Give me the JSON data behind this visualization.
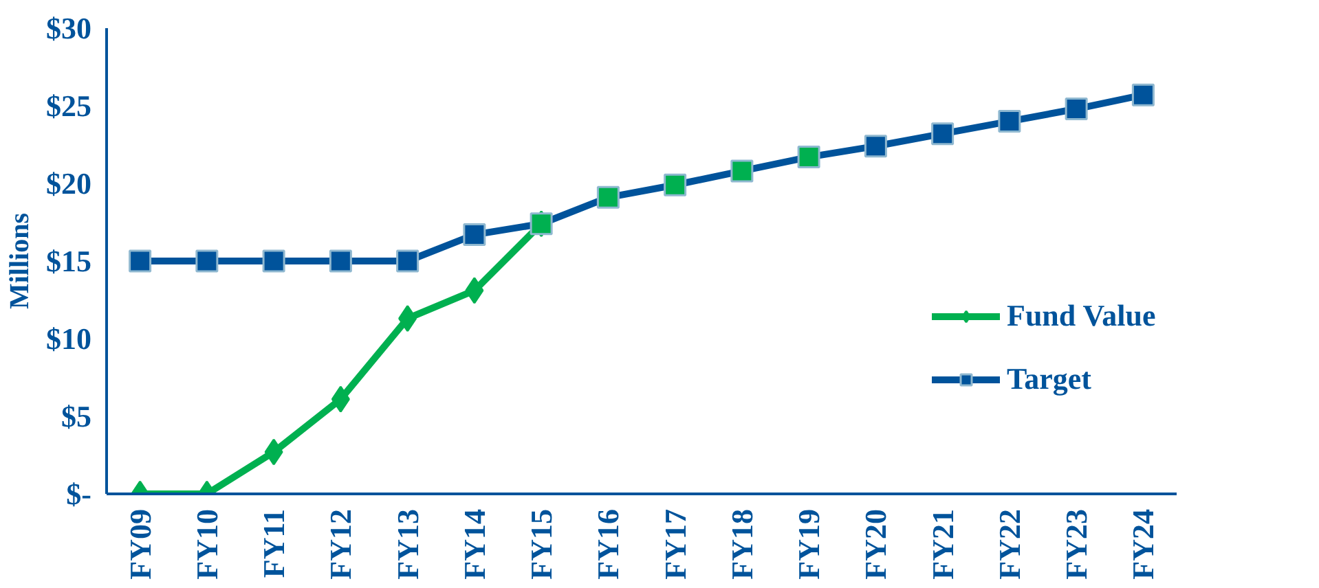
{
  "chart_data": {
    "type": "line",
    "ylabel": "Millions",
    "categories": [
      "FY09",
      "FY10",
      "FY11",
      "FY12",
      "FY13",
      "FY14",
      "FY15",
      "FY16",
      "FY17",
      "FY18",
      "FY19",
      "FY20",
      "FY21",
      "FY22",
      "FY23",
      "FY24"
    ],
    "series": [
      {
        "name": "Fund Value",
        "color": "#00b050",
        "marker": "diamond",
        "values": [
          0,
          0,
          2.7,
          6.1,
          11.3,
          13.1,
          17.4,
          null,
          null,
          null,
          null,
          null,
          null,
          null,
          null,
          null
        ]
      },
      {
        "name": "Target",
        "color": "#00539b",
        "marker": "square",
        "colors": [
          "#00539b",
          "#00539b",
          "#00539b",
          "#00539b",
          "#00539b",
          "#00539b",
          "#00b050",
          "#00b050",
          "#00b050",
          "#00b050",
          "#00b050",
          "#00539b",
          "#00539b",
          "#00539b",
          "#00539b",
          "#00539b"
        ],
        "values": [
          15,
          15,
          15,
          15,
          15,
          16.7,
          17.4,
          19.1,
          19.9,
          20.8,
          21.7,
          22.4,
          23.2,
          24.0,
          24.8,
          25.7
        ]
      }
    ],
    "ylim": [
      0,
      30
    ],
    "yticks": [
      {
        "value": 0,
        "label": "$-"
      },
      {
        "value": 5,
        "label": "$5"
      },
      {
        "value": 10,
        "label": "$10"
      },
      {
        "value": 15,
        "label": "$15"
      },
      {
        "value": 20,
        "label": "$20"
      },
      {
        "value": 25,
        "label": "$25"
      },
      {
        "value": 30,
        "label": "$30"
      }
    ],
    "grid": false,
    "legend": "right",
    "line_style": "solid"
  }
}
